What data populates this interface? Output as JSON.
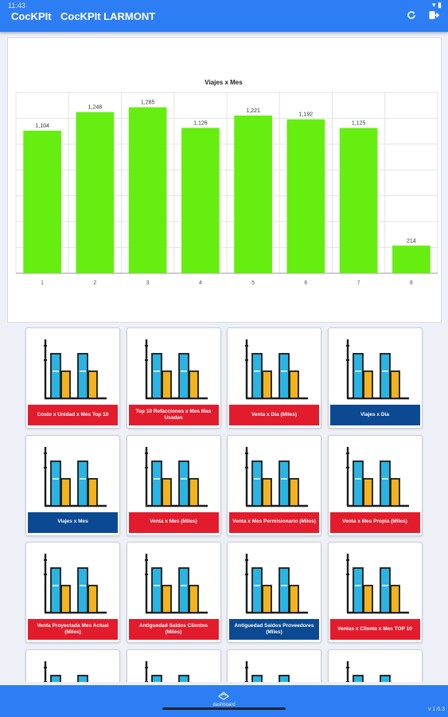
{
  "status_bar": {
    "time": "11:43",
    "icons": "▾ ▮"
  },
  "header": {
    "app_title": "CocKPIt",
    "screen_title": "CocKPIt LARMONT",
    "refresh_icon": "refresh-icon",
    "logout_icon": "logout-icon"
  },
  "chart_data": {
    "type": "bar",
    "title": "Viajes x Mes",
    "categories": [
      "1",
      "2",
      "3",
      "4",
      "5",
      "6",
      "7",
      "8"
    ],
    "values": [
      1104,
      1248,
      1285,
      1126,
      1221,
      1192,
      1125,
      214
    ],
    "value_labels": [
      "1,104",
      "1,248",
      "1,285",
      "1,126",
      "1,221",
      "1,192",
      "1,125",
      "214"
    ],
    "ylim": [
      0,
      1400
    ],
    "bar_color": "#66ee11",
    "grid": true,
    "legend": "none"
  },
  "tiles": [
    {
      "label": "Costo x Unidad x Mes Top 10",
      "color": "red"
    },
    {
      "label": "Top 10 Refacciones x Mes Mas Usadas",
      "color": "red"
    },
    {
      "label": "Venta x Dia (Miles)",
      "color": "red"
    },
    {
      "label": "Viajes x Dia",
      "color": "blue"
    },
    {
      "label": "Viajes x Mes",
      "color": "blue"
    },
    {
      "label": "Venta x Mes (Miles)",
      "color": "red"
    },
    {
      "label": "Venta x Mes Permisionario (Miles)",
      "color": "red"
    },
    {
      "label": "Venta x Mes Propia (Miles)",
      "color": "red"
    },
    {
      "label": "Venta Proyectada Mes Actual (Miles)",
      "color": "red"
    },
    {
      "label": "Antiguedad Saldos Clientes (Miles)",
      "color": "red"
    },
    {
      "label": "Antiguedad Saldos Proveedores (Miles)",
      "color": "blue"
    },
    {
      "label": "Ventas x Cliente x Mes TOP 10",
      "color": "red"
    },
    {
      "label": "",
      "color": "red"
    },
    {
      "label": "",
      "color": "red"
    },
    {
      "label": "",
      "color": "red"
    },
    {
      "label": "",
      "color": "red"
    }
  ],
  "footer": {
    "dashboard_label": "dashboard",
    "dashboard_icon": "dashboard-icon",
    "version": "v 1.6.3"
  },
  "colors": {
    "header": "#2d7ef5",
    "label_red": "#e31c2d",
    "label_blue": "#0b4a93",
    "icon_bar_blue": "#29b4e3",
    "icon_bar_yellow": "#f2b31c"
  }
}
